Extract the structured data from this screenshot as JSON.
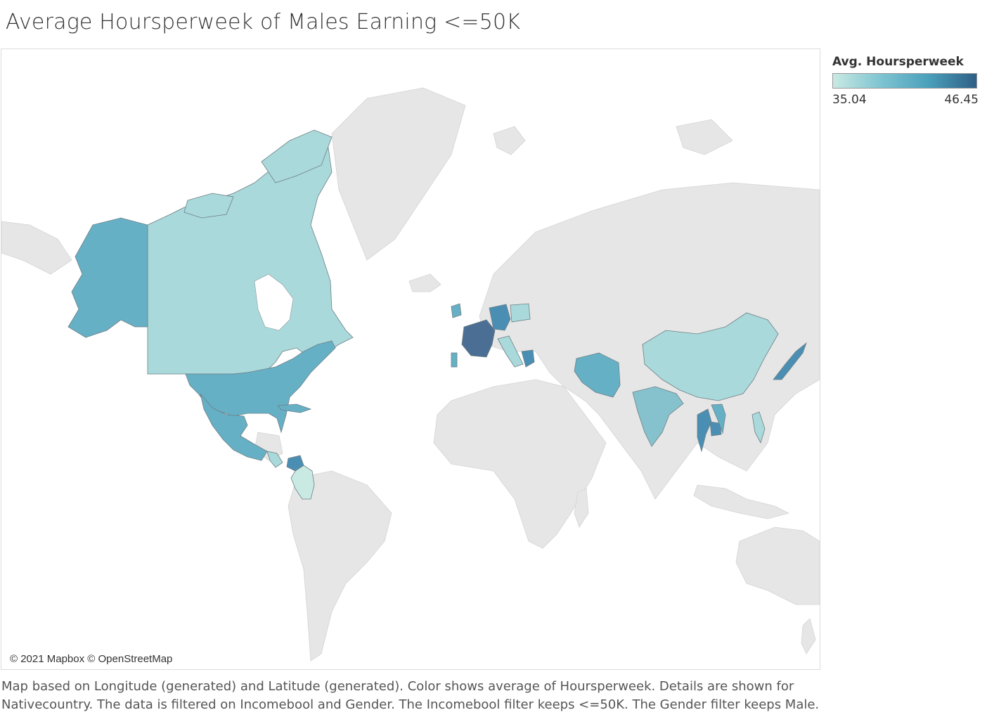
{
  "title": "Average Hoursperweek of Males Earning <=50K",
  "legend": {
    "title": "Avg. Hoursperweek",
    "min_label": "35.04",
    "max_label": "46.45",
    "min": 35.04,
    "max": 46.45,
    "color_low": "#c9e9e3",
    "color_high": "#2f5f86"
  },
  "attribution": "© 2021 Mapbox © OpenStreetMap",
  "caption": {
    "line1": "Map based on Longitude (generated) and Latitude (generated).  Color shows average of Hoursperweek.  Details are shown for",
    "line2": "Nativecountry. The data is filtered on Incomebool and Gender. The Incomebool filter keeps <=50K. The Gender filter keeps Male."
  },
  "colors": {
    "background_land": "#e6e6e6",
    "water": "#ffffff",
    "light": "#a9d9da",
    "mid": "#66b0c6",
    "dark": "#4a8fb3",
    "darkest": "#4b6e95"
  },
  "highlighted_countries": [
    {
      "name": "Canada",
      "shade": "light"
    },
    {
      "name": "United States",
      "shade": "mid"
    },
    {
      "name": "Mexico",
      "shade": "mid"
    },
    {
      "name": "Cuba",
      "shade": "mid"
    },
    {
      "name": "Ecuador",
      "shade": "dark"
    },
    {
      "name": "Peru",
      "shade": "light"
    },
    {
      "name": "Ireland",
      "shade": "mid"
    },
    {
      "name": "France",
      "shade": "darkest"
    },
    {
      "name": "Germany",
      "shade": "dark"
    },
    {
      "name": "Poland",
      "shade": "light"
    },
    {
      "name": "Italy",
      "shade": "light"
    },
    {
      "name": "Portugal",
      "shade": "mid"
    },
    {
      "name": "Greece",
      "shade": "dark"
    },
    {
      "name": "Iran",
      "shade": "mid"
    },
    {
      "name": "India",
      "shade": "light"
    },
    {
      "name": "China",
      "shade": "light"
    },
    {
      "name": "Japan",
      "shade": "dark"
    },
    {
      "name": "Thailand",
      "shade": "dark"
    },
    {
      "name": "Cambodia",
      "shade": "dark"
    },
    {
      "name": "Vietnam",
      "shade": "mid"
    },
    {
      "name": "Philippines",
      "shade": "light"
    }
  ]
}
